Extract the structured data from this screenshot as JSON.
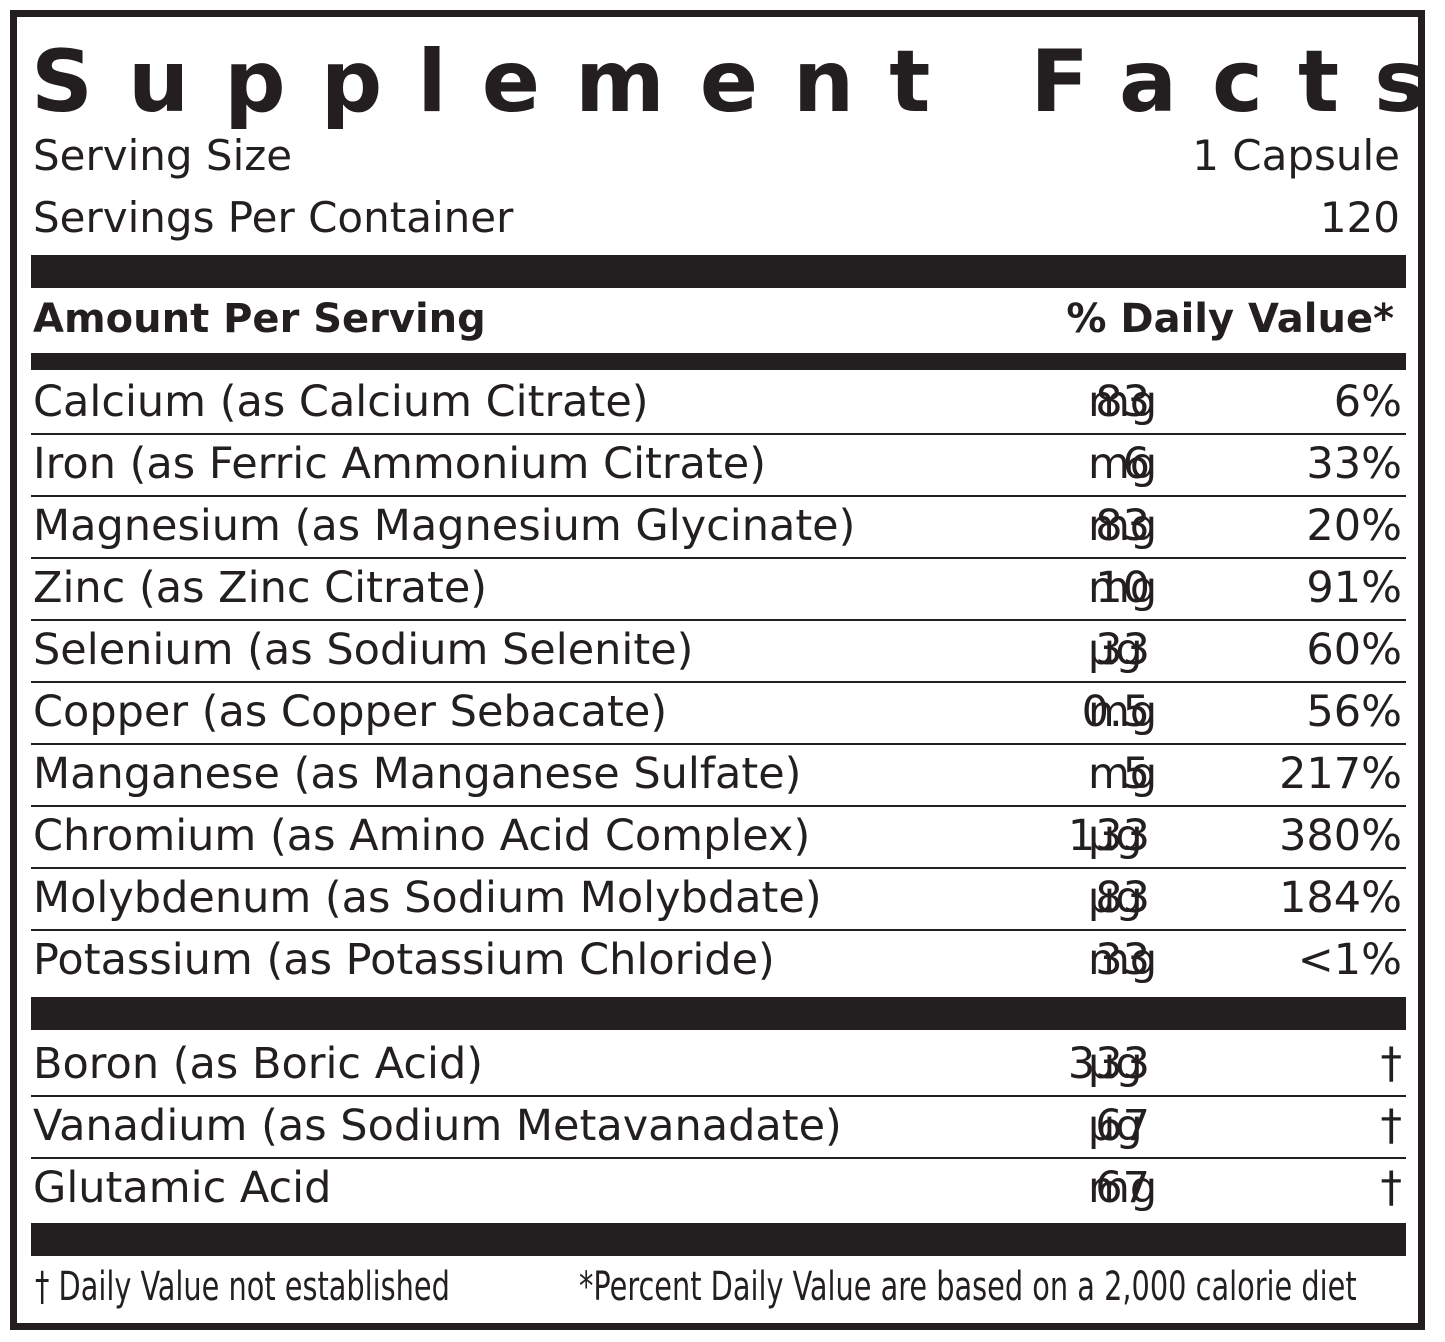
{
  "title": "Supplement Facts",
  "serving": {
    "size_label": "Serving Size",
    "size_value": "1 Capsule",
    "per_container_label": "Servings Per Container",
    "per_container_value": "120"
  },
  "header": {
    "amount_label": "Amount Per Serving",
    "dv_label": "% Daily Value*"
  },
  "nutrients": [
    {
      "name": "Calcium (as Calcium Citrate)",
      "amount": "83",
      "unit": "mg",
      "dv": "6%"
    },
    {
      "name": "Iron (as Ferric Ammonium Citrate)",
      "amount": "6",
      "unit": "mg",
      "dv": "33%"
    },
    {
      "name": "Magnesium (as Magnesium Glycinate)",
      "amount": "83",
      "unit": "mg",
      "dv": "20%"
    },
    {
      "name": "Zinc (as Zinc Citrate)",
      "amount": "10",
      "unit": "mg",
      "dv": "91%"
    },
    {
      "name": "Selenium (as Sodium Selenite)",
      "amount": "33",
      "unit": "μg",
      "dv": "60%"
    },
    {
      "name": "Copper (as Copper Sebacate)",
      "amount": "0.5",
      "unit": "mg",
      "dv": "56%"
    },
    {
      "name": "Manganese (as Manganese Sulfate)",
      "amount": "5",
      "unit": "mg",
      "dv": "217%"
    },
    {
      "name": "Chromium (as Amino Acid Complex)",
      "amount": "133",
      "unit": "μg",
      "dv": "380%"
    },
    {
      "name": "Molybdenum (as Sodium Molybdate)",
      "amount": "83",
      "unit": "μg",
      "dv": "184%"
    },
    {
      "name": "Potassium (as Potassium Chloride)",
      "amount": "33",
      "unit": "mg",
      "dv": "<1%"
    }
  ],
  "others": [
    {
      "name": "Boron (as Boric Acid)",
      "amount": "333",
      "unit": "μg",
      "dv": "†"
    },
    {
      "name": "Vanadium (as Sodium Metavanadate)",
      "amount": "67",
      "unit": "μg",
      "dv": "†"
    },
    {
      "name": "Glutamic Acid",
      "amount": "67",
      "unit": "mg",
      "dv": "†"
    }
  ],
  "footer": {
    "dagger_note": "† Daily Value not established",
    "percent_note": "*Percent Daily Value are based on a 2,000 calorie diet"
  }
}
